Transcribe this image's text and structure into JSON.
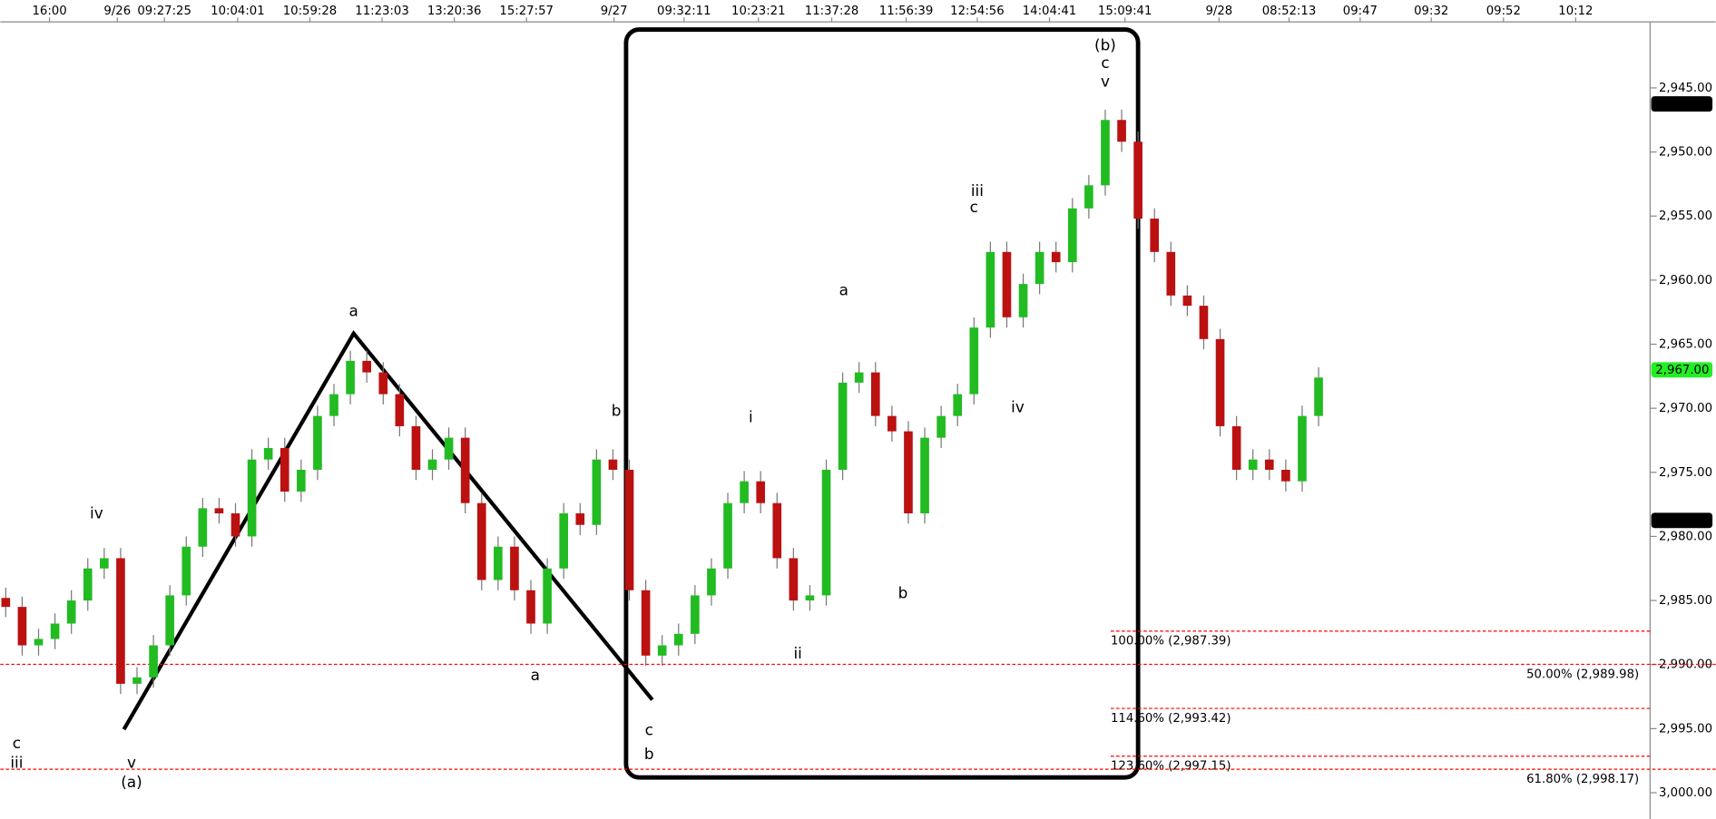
{
  "chart_data": {
    "type": "candlestick",
    "ylim": [
      2940,
      3002
    ],
    "yticks": [
      {
        "value": 2945,
        "label": "2,945.00"
      },
      {
        "value": 2950,
        "label": "2,950.00"
      },
      {
        "value": 2955,
        "label": "2,955.00"
      },
      {
        "value": 2960,
        "label": "2,960.00"
      },
      {
        "value": 2965,
        "label": "2,965.00"
      },
      {
        "value": 2970,
        "label": "2,970.00"
      },
      {
        "value": 2975,
        "label": "2,975.00"
      },
      {
        "value": 2980,
        "label": "2,980.00"
      },
      {
        "value": 2985,
        "label": "2,985.00"
      },
      {
        "value": 2990,
        "label": "2,990.00"
      },
      {
        "value": 2995,
        "label": "2,995.00"
      },
      {
        "value": {
          "value": 3000,
          "label": "3,000.00"
        }
      }
    ],
    "time_labels": [
      "16:00",
      "9/26",
      "09:27:25",
      "10:04:01",
      "10:59:28",
      "11:23:03",
      "13:20:36",
      "15:27:57",
      "9/27",
      "09:32:11",
      "10:23:21",
      "11:37:28",
      "11:56:39",
      "12:54:56",
      "14:04:41",
      "15:09:41",
      "9/28",
      "08:52:13",
      "09:47",
      "09:32",
      "09:52",
      "10:12"
    ],
    "up_color": "#22bb22",
    "down_color": "#bb1111",
    "open": [
      2984.8,
      2985.5,
      2988.5,
      2988,
      2986.8,
      2985,
      2982.5,
      2981.7,
      2991.5,
      2991,
      2988.5,
      2984.6,
      2980.8,
      2977.8,
      2978.2,
      2980,
      2974,
      2973.1,
      2976.5,
      2974.8,
      2970.6,
      2968.9,
      2966.3,
      2967.2,
      2968.9,
      2971.4,
      2974.8,
      2974,
      2972.3,
      2977.4,
      2983.4,
      2980.8,
      2984.2,
      2986.8,
      2982.5,
      2978.2,
      2979.1,
      2974,
      2974.8,
      2984.2,
      2989.3,
      2988.5,
      2987.6,
      2984.6,
      2982.5,
      2977.4,
      2975.7,
      2977.4,
      2981.7,
      2985,
      2984.6,
      2974.8,
      2968,
      2967.2,
      2970.6,
      2971.8,
      2978.2,
      2972.3,
      2970.6,
      2968.9,
      2963.7,
      2957.8,
      2962.9,
      2960.3,
      2957.8,
      2958.6,
      2954.4,
      2952.6,
      2947.5,
      2949.2,
      2955.2,
      2957.8,
      2961.2,
      2962,
      2964.6,
      2971.4,
      2974.8,
      2974,
      2974.8,
      2975.7,
      2970.6
    ],
    "high": [
      2986.3,
      2989.3,
      2989.3,
      2988.8,
      2987.6,
      2985.8,
      2983.3,
      2992.3,
      2992.3,
      2991.8,
      2989.3,
      2985.4,
      2981.6,
      2979,
      2980.8,
      2980.8,
      2974.8,
      2977.3,
      2977.3,
      2975.6,
      2971.4,
      2969.7,
      2968,
      2969.7,
      2972.2,
      2975.6,
      2975.6,
      2974.8,
      2978.2,
      2984.2,
      2984.2,
      2985,
      2987.6,
      2987.6,
      2983.3,
      2979.9,
      2979.9,
      2975.6,
      2985,
      2990.1,
      2990.1,
      2989.3,
      2988.4,
      2985.4,
      2983.3,
      2978.2,
      2978.2,
      2982.5,
      2985.8,
      2985.8,
      2985.4,
      2975.6,
      2968.8,
      2971.4,
      2972.6,
      2979,
      2979,
      2973.1,
      2971.4,
      2969.7,
      2964.5,
      2963.7,
      2963.7,
      2961.1,
      2959.4,
      2959.4,
      2955.2,
      2953.4,
      2950,
      2956,
      2958.6,
      2962,
      2962.8,
      2965.4,
      2972.2,
      2975.6,
      2975.6,
      2975.6,
      2976.5,
      2976.5,
      2971.4
    ],
    "low": [
      2984,
      2984.7,
      2987.2,
      2986,
      2984.2,
      2981.7,
      2980.9,
      2980.9,
      2990.2,
      2987.7,
      2983.8,
      2980,
      2977,
      2977,
      2977.4,
      2973.2,
      2972.3,
      2972.3,
      2974,
      2969.8,
      2968.1,
      2965.5,
      2965.5,
      2966.4,
      2968.1,
      2970.6,
      2973.2,
      2971.5,
      2971.5,
      2976.6,
      2980,
      2980,
      2983.4,
      2981.7,
      2977.4,
      2977.4,
      2973.2,
      2973.2,
      2974,
      2983.4,
      2987.7,
      2986.8,
      2983.8,
      2981.7,
      2976.6,
      2974.9,
      2974.9,
      2976.6,
      2980.9,
      2983.8,
      2974,
      2967.2,
      2966.4,
      2966.4,
      2969.8,
      2971,
      2971.5,
      2969.8,
      2968.1,
      2962.9,
      2957,
      2957,
      2959.5,
      2957,
      2957,
      2953.6,
      2951.8,
      2946.7,
      2946.7,
      2948.4,
      2954.4,
      2957,
      2960.4,
      2961.2,
      2963.8,
      2970.6,
      2973.2,
      2973.2,
      2974,
      2969.8,
      2966.8
    ],
    "close": [
      2985.5,
      2988.5,
      2988,
      2986.8,
      2985,
      2982.5,
      2981.7,
      2991.5,
      2991,
      2988.5,
      2984.6,
      2980.8,
      2977.8,
      2978.2,
      2980,
      2974,
      2973.1,
      2976.5,
      2974.8,
      2970.6,
      2968.9,
      2966.3,
      2967.2,
      2968.9,
      2971.4,
      2974.8,
      2974,
      2972.3,
      2977.4,
      2983.4,
      2980.8,
      2984.2,
      2986.8,
      2982.5,
      2978.2,
      2979.1,
      2974,
      2974.8,
      2984.2,
      2989.3,
      2988.5,
      2987.6,
      2984.6,
      2982.5,
      2977.4,
      2975.7,
      2977.4,
      2981.7,
      2985,
      2984.6,
      2974.8,
      2968,
      2967.2,
      2970.6,
      2971.8,
      2978.2,
      2972.3,
      2970.6,
      2968.9,
      2963.7,
      2957.8,
      2962.9,
      2960.3,
      2957.8,
      2958.6,
      2954.4,
      2952.6,
      2947.5,
      2949.2,
      2955.2,
      2957.8,
      2961.2,
      2962,
      2964.6,
      2971.4,
      2974.8,
      2974,
      2974.8,
      2975.7,
      2970.6,
      2967.6
    ],
    "price_markers": [
      {
        "value": 2946.25,
        "label": "2,946.25",
        "color": "#000000"
      },
      {
        "value": 2967,
        "label": "2,967.00",
        "color": "#22ee22"
      },
      {
        "value": 2978.75,
        "label": "2,978.75",
        "color": "#000000"
      }
    ],
    "fib_color": "#ff0000",
    "fib_levels": [
      {
        "value": 2987.39,
        "label": "100.00% (2,987.39)"
      },
      {
        "value": 2989.98,
        "label": "50.00% (2,989.98)"
      },
      {
        "value": 2993.42,
        "label": "114.60% (2,993.42)"
      },
      {
        "value": 2997.15,
        "label": "123.60% (2,997.15)"
      },
      {
        "value": 2998.17,
        "label": "61.80% (2,998.17)"
      }
    ],
    "annotations": [
      {
        "text": "c",
        "color": "#000000"
      },
      {
        "text": "iii",
        "color": "#000000"
      },
      {
        "text": "v",
        "color": "#000000"
      },
      {
        "text": "(a)",
        "color": "#000000"
      },
      {
        "text": "iv",
        "color": "#000000"
      },
      {
        "text": "a",
        "color": "#000000"
      },
      {
        "text": "b",
        "color": "#ff0000"
      },
      {
        "text": "a",
        "color": "#ff0000"
      },
      {
        "text": "c",
        "color": "#ff0000"
      },
      {
        "text": "b",
        "color": "#000000"
      },
      {
        "text": "i",
        "color": "#000000"
      },
      {
        "text": "ii",
        "color": "#000000"
      },
      {
        "text": "a",
        "color": "#000000"
      },
      {
        "text": "b",
        "color": "#000000"
      },
      {
        "text": "c",
        "color": "#000000"
      },
      {
        "text": "iii",
        "color": "#000000"
      },
      {
        "text": "iv",
        "color": "#000000"
      },
      {
        "text": "v",
        "color": "#000000"
      },
      {
        "text": "c",
        "color": "#000000"
      },
      {
        "text": "(b)",
        "color": "#000000"
      }
    ]
  }
}
